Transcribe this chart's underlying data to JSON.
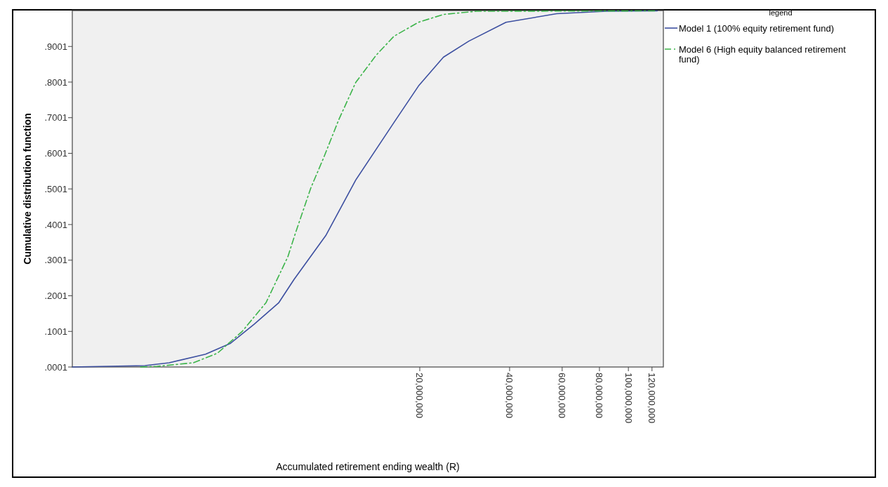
{
  "chart_data": {
    "type": "line",
    "xlabel": "Accumulated retirement ending wealth (R)",
    "ylabel": "Cumulative distribution function",
    "legend_title": "legend",
    "legend": "top right",
    "log": "x",
    "grid": false,
    "marker": "none",
    "xlim": [
      1370000,
      131000000
    ],
    "xticks": [
      {
        "value": 20000000,
        "label": "20,000,000"
      },
      {
        "value": 40000000,
        "label": "40,000,000"
      },
      {
        "value": 60000000,
        "label": "60,000,000"
      },
      {
        "value": 80000000,
        "label": "80,000,000"
      },
      {
        "value": 100000000,
        "label": "100,000,000"
      },
      {
        "value": 120000000,
        "label": "120,000,000"
      }
    ],
    "ylim": [
      0.0001,
      1.001
    ],
    "yticks": [
      {
        "value": 0.0001,
        "label": ".0001"
      },
      {
        "value": 0.1001,
        "label": ".1001"
      },
      {
        "value": 0.2001,
        "label": ".2001"
      },
      {
        "value": 0.3001,
        "label": ".3001"
      },
      {
        "value": 0.4001,
        "label": ".4001"
      },
      {
        "value": 0.5001,
        "label": ".5001"
      },
      {
        "value": 0.6001,
        "label": ".6001"
      },
      {
        "value": 0.7001,
        "label": ".7001"
      },
      {
        "value": 0.8001,
        "label": ".8001"
      },
      {
        "value": 0.9001,
        "label": ".9001"
      }
    ],
    "series": [
      {
        "name": "Model 1 (100% equity retirement fund)",
        "color": "#3c4fa0",
        "line_style": "solid",
        "x": [
          1370000,
          2400000,
          2890000,
          3830000,
          4630000,
          5570000,
          6730000,
          7580000,
          9680000,
          12200000,
          16400000,
          19800000,
          24000000,
          29200000,
          38900000,
          57500000,
          84500000,
          125000000
        ],
        "values": [
          0.0001,
          0.004,
          0.012,
          0.036,
          0.066,
          0.12,
          0.18,
          0.246,
          0.369,
          0.525,
          0.687,
          0.789,
          0.87,
          0.915,
          0.968,
          0.992,
          0.999,
          1.0
        ]
      },
      {
        "name": "Model 6 (High equity balanced retirement fund)",
        "color": "#3cb44a",
        "line_style": "dashed",
        "x": [
          2320000,
          2640000,
          3490000,
          4200000,
          5080000,
          6110000,
          7230000,
          7670000,
          8630000,
          9530000,
          10700000,
          12200000,
          14300000,
          16400000,
          19800000,
          24000000,
          31000000,
          125000000
        ],
        "values": [
          0.0001,
          0.002,
          0.012,
          0.039,
          0.1,
          0.181,
          0.31,
          0.377,
          0.503,
          0.588,
          0.694,
          0.799,
          0.876,
          0.929,
          0.968,
          0.99,
          0.999,
          1.0
        ]
      }
    ]
  }
}
